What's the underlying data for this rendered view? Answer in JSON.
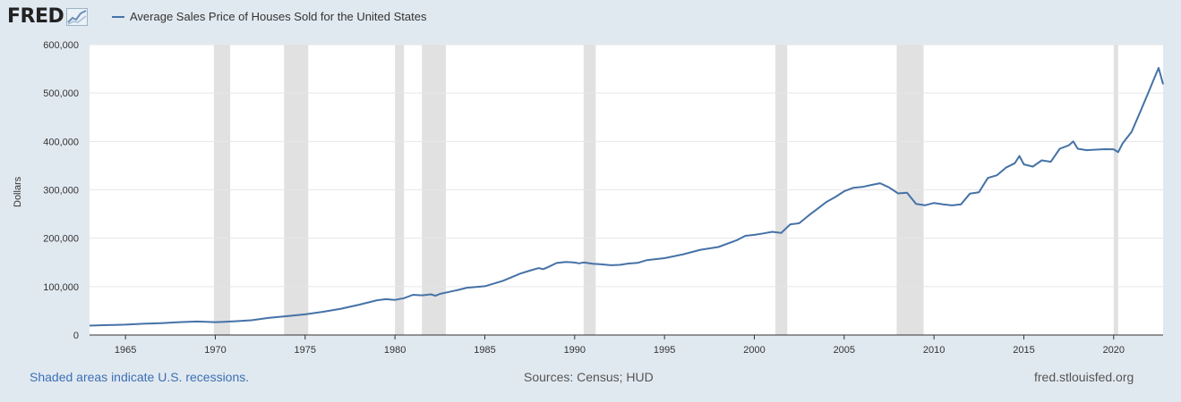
{
  "header": {
    "logo_text": "FRED",
    "legend_label": "Average Sales Price of Houses Sold for the United States"
  },
  "footer": {
    "recession_note": "Shaded areas indicate U.S. recessions.",
    "sources": "Sources: Census; HUD",
    "site": "fred.stlouisfed.org"
  },
  "colors": {
    "line": "#4572a7",
    "recession": "#e1e1e1",
    "background": "#e1e9f0"
  },
  "chart_data": {
    "type": "line",
    "title": "",
    "ylabel": "Dollars",
    "xlabel": "",
    "xlim": [
      1963.0,
      2022.75
    ],
    "ylim": [
      0,
      600000
    ],
    "yticks": [
      0,
      100000,
      200000,
      300000,
      400000,
      500000,
      600000
    ],
    "ytick_labels": [
      "0",
      "100,000",
      "200,000",
      "300,000",
      "400,000",
      "500,000",
      "600,000"
    ],
    "xticks": [
      1965,
      1970,
      1975,
      1980,
      1985,
      1990,
      1995,
      2000,
      2005,
      2010,
      2015,
      2020
    ],
    "xtick_labels": [
      "1965",
      "1970",
      "1975",
      "1980",
      "1985",
      "1990",
      "1995",
      "2000",
      "2005",
      "2010",
      "2015",
      "2020"
    ],
    "grid": true,
    "legend_position": "top-left",
    "recessions": [
      {
        "start": 1969.92,
        "end": 1970.83
      },
      {
        "start": 1973.83,
        "end": 1975.17
      },
      {
        "start": 1980.0,
        "end": 1980.5
      },
      {
        "start": 1981.5,
        "end": 1982.83
      },
      {
        "start": 1990.5,
        "end": 1991.17
      },
      {
        "start": 2001.17,
        "end": 2001.83
      },
      {
        "start": 2007.92,
        "end": 2009.42
      },
      {
        "start": 2020.0,
        "end": 2020.25
      }
    ],
    "series": [
      {
        "name": "Average Sales Price of Houses Sold for the United States",
        "x": [
          1963.0,
          1964.0,
          1965.0,
          1966.0,
          1967.0,
          1968.0,
          1969.0,
          1970.0,
          1970.5,
          1971.0,
          1972.0,
          1973.0,
          1974.0,
          1975.0,
          1976.0,
          1977.0,
          1978.0,
          1979.0,
          1979.5,
          1980.0,
          1980.5,
          1981.0,
          1981.5,
          1982.0,
          1982.25,
          1982.5,
          1983.0,
          1983.5,
          1984.0,
          1985.0,
          1986.0,
          1987.0,
          1987.5,
          1988.0,
          1988.25,
          1988.5,
          1989.0,
          1989.5,
          1990.0,
          1990.25,
          1990.5,
          1991.0,
          1991.5,
          1992.0,
          1992.5,
          1993.0,
          1993.5,
          1994.0,
          1995.0,
          1996.0,
          1997.0,
          1998.0,
          1999.0,
          1999.5,
          2000.0,
          2000.5,
          2001.0,
          2001.5,
          2002.0,
          2002.5,
          2003.0,
          2004.0,
          2004.5,
          2005.0,
          2005.5,
          2006.0,
          2006.5,
          2007.0,
          2007.5,
          2008.0,
          2008.5,
          2009.0,
          2009.5,
          2010.0,
          2010.5,
          2011.0,
          2011.5,
          2012.0,
          2012.5,
          2013.0,
          2013.5,
          2014.0,
          2014.5,
          2014.75,
          2015.0,
          2015.5,
          2016.0,
          2016.5,
          2017.0,
          2017.5,
          2017.75,
          2018.0,
          2018.5,
          2019.0,
          2019.5,
          2020.0,
          2020.25,
          2020.5,
          2021.0,
          2021.5,
          2022.0,
          2022.25,
          2022.5,
          2022.75
        ],
        "values": [
          19300,
          20500,
          21500,
          23300,
          24600,
          26600,
          27900,
          26600,
          27400,
          28300,
          30500,
          35500,
          38900,
          42600,
          48000,
          54200,
          62500,
          71800,
          74000,
          72500,
          76000,
          83000,
          82000,
          84000,
          81000,
          85000,
          89000,
          93000,
          97600,
          100800,
          111900,
          127200,
          133000,
          138300,
          136000,
          140000,
          148800,
          151000,
          149800,
          148000,
          150000,
          147200,
          146000,
          144100,
          145000,
          147700,
          149000,
          154500,
          158700,
          166400,
          176200,
          181900,
          195600,
          205000,
          207000,
          210000,
          213200,
          211000,
          228700,
          231000,
          246300,
          274500,
          285000,
          297000,
          304000,
          305900,
          310000,
          313600,
          305000,
          292600,
          294000,
          270900,
          268000,
          272900,
          270000,
          267900,
          270000,
          292200,
          295000,
          324500,
          330000,
          345800,
          355000,
          370000,
          352700,
          348000,
          360900,
          358000,
          384900,
          392000,
          400000,
          385000,
          382000,
          383000,
          384000,
          383900,
          378000,
          396000,
          420000,
          463000,
          507000,
          530000,
          552000,
          518000
        ]
      }
    ]
  }
}
